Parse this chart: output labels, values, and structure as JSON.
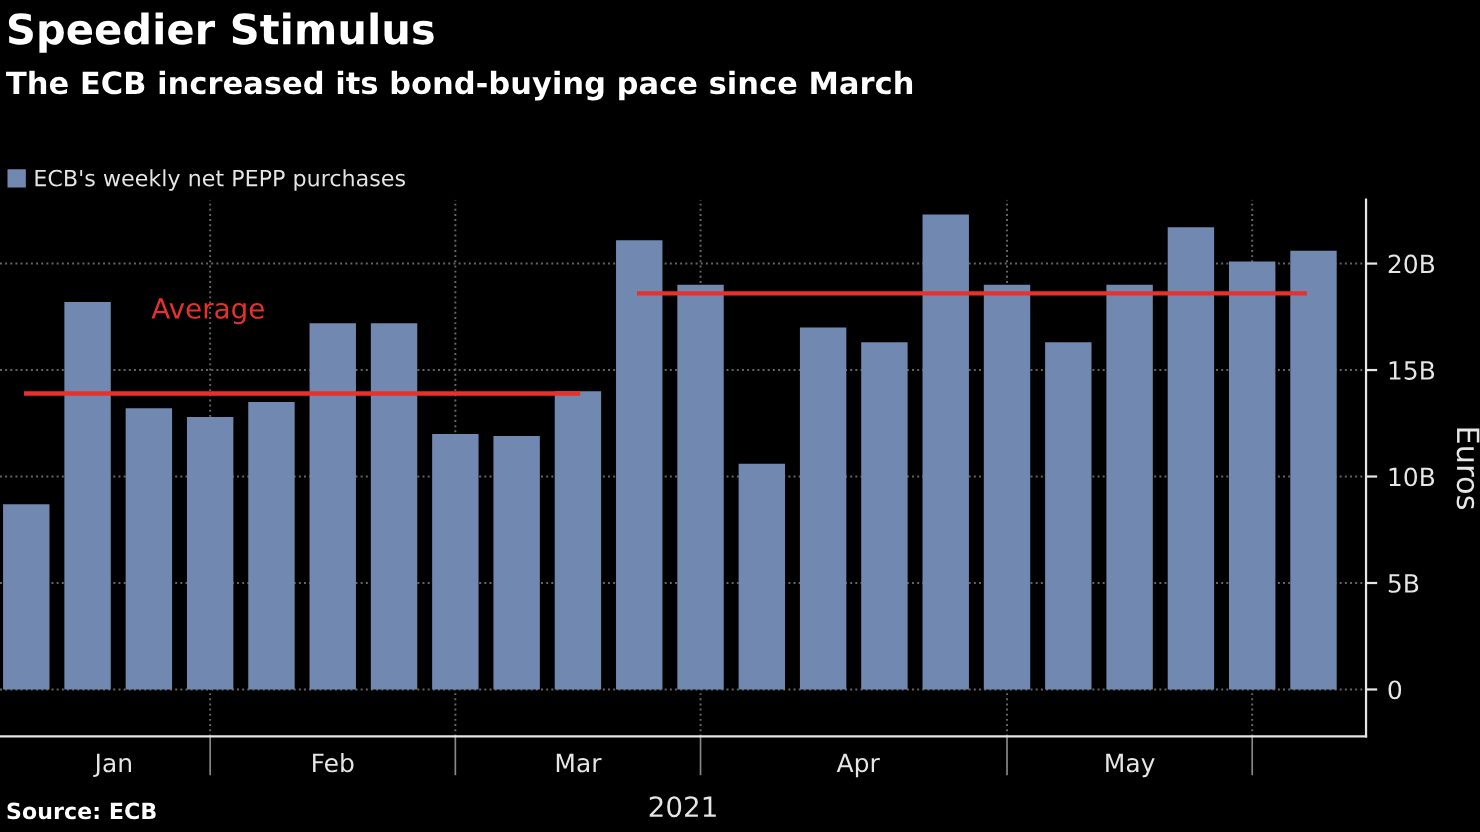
{
  "chart_data": {
    "type": "bar",
    "title": "Speedier Stimulus",
    "subtitle": "The ECB increased its bond-buying pace since March",
    "xlabel": "2021",
    "ylabel": "Euros",
    "x": [
      "2021-01-11",
      "2021-01-18",
      "2021-01-25",
      "2021-02-01",
      "2021-02-08",
      "2021-02-15",
      "2021-02-22",
      "2021-03-01",
      "2021-03-08",
      "2021-03-15",
      "2021-03-22",
      "2021-03-29",
      "2021-04-05",
      "2021-04-12",
      "2021-04-19",
      "2021-04-26",
      "2021-05-03",
      "2021-05-10",
      "2021-05-17",
      "2021-05-24",
      "2021-05-31",
      "2021-06-07"
    ],
    "series": [
      {
        "name": "ECB's weekly net PEPP purchases",
        "color": "#7189b0",
        "values": [
          8.7,
          18.2,
          13.2,
          12.8,
          13.5,
          17.2,
          17.2,
          12.0,
          11.9,
          14.0,
          21.1,
          19.0,
          10.6,
          17.0,
          16.3,
          22.3,
          19.0,
          16.3,
          19.0,
          21.7,
          20.1,
          20.6
        ]
      },
      {
        "name": "Average",
        "type": "line",
        "color": "#e8312d",
        "x": [
          "2021-01-11",
          "2021-03-15"
        ],
        "values": [
          13.9,
          13.9
        ]
      },
      {
        "type": "line",
        "color": "#e8312d",
        "x": [
          "2021-03-22",
          "2021-06-06"
        ],
        "values": [
          18.6,
          18.6
        ]
      }
    ],
    "xlim": [
      "2021-01-08",
      "2021-06-13"
    ],
    "xticks": [
      {
        "value": "2021-01-21",
        "label": "Jan"
      },
      {
        "value": "2021-02-15",
        "label": "Feb"
      },
      {
        "value": "2021-03-15",
        "label": "Mar"
      },
      {
        "value": "2021-04-16",
        "label": "Apr"
      },
      {
        "value": "2021-05-17",
        "label": "May"
      },
      {
        "value": "2021-02-01",
        "label": null
      },
      {
        "value": "2021-03-01",
        "label": null
      },
      {
        "value": "2021-03-29",
        "label": null
      },
      {
        "value": "2021-05-03",
        "label": null
      },
      {
        "value": "2021-05-31",
        "label": null
      }
    ],
    "ylim": [
      -2.2,
      23
    ],
    "yticks": [
      0,
      {
        "value": 5,
        "label": "5B"
      },
      {
        "value": 10,
        "label": "10B"
      },
      {
        "value": 15,
        "label": "15B"
      },
      {
        "value": 20,
        "label": "20B"
      }
    ],
    "grid": true,
    "legend": "top left",
    "annotations": [
      "Source: ECB"
    ]
  }
}
